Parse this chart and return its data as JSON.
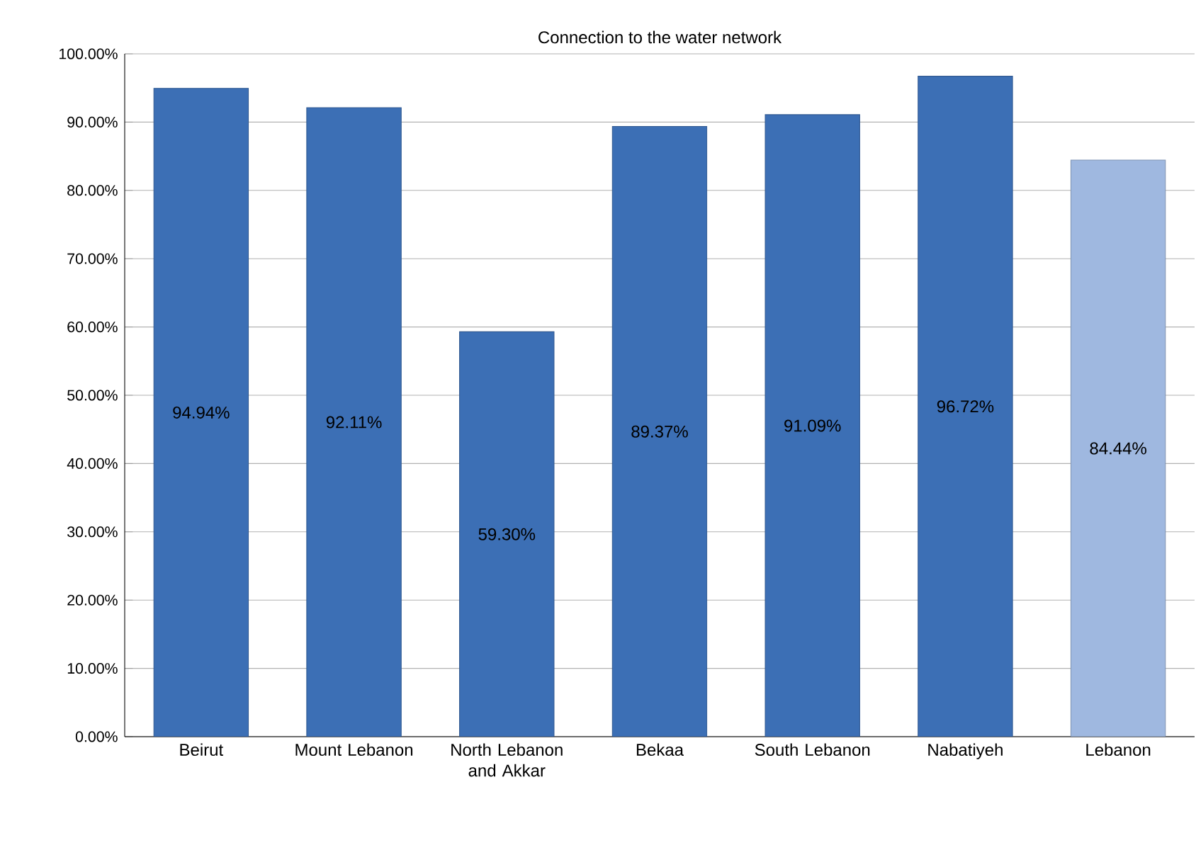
{
  "chart_data": {
    "type": "bar",
    "title": "Connection to the water network",
    "categories": [
      "Beirut",
      "Mount Lebanon",
      "North Lebanon and Akkar",
      "Bekaa",
      "South Lebanon",
      "Nabatiyeh",
      "Lebanon"
    ],
    "values": [
      94.94,
      92.11,
      59.3,
      89.37,
      91.09,
      96.72,
      84.44
    ],
    "value_labels": [
      "94.94%",
      "92.11%",
      "59.30%",
      "89.37%",
      "91.09%",
      "96.72%",
      "84.44%"
    ],
    "colors": [
      "#3c6fb5",
      "#3c6fb5",
      "#3c6fb5",
      "#3c6fb5",
      "#3c6fb5",
      "#3c6fb5",
      "#9fb8e0"
    ],
    "ylim": [
      0,
      100
    ],
    "yticks": [
      {
        "value": 0,
        "label": "0.00%"
      },
      {
        "value": 10,
        "label": "10.00%"
      },
      {
        "value": 20,
        "label": "20.00%"
      },
      {
        "value": 30,
        "label": "30.00%"
      },
      {
        "value": 40,
        "label": "40.00%"
      },
      {
        "value": 50,
        "label": "50.00%"
      },
      {
        "value": 60,
        "label": "60.00%"
      },
      {
        "value": 70,
        "label": "70.00%"
      },
      {
        "value": 80,
        "label": "80.00%"
      },
      {
        "value": 90,
        "label": "90.00%"
      },
      {
        "value": 100,
        "label": "100.00%"
      }
    ],
    "grid": "y"
  }
}
